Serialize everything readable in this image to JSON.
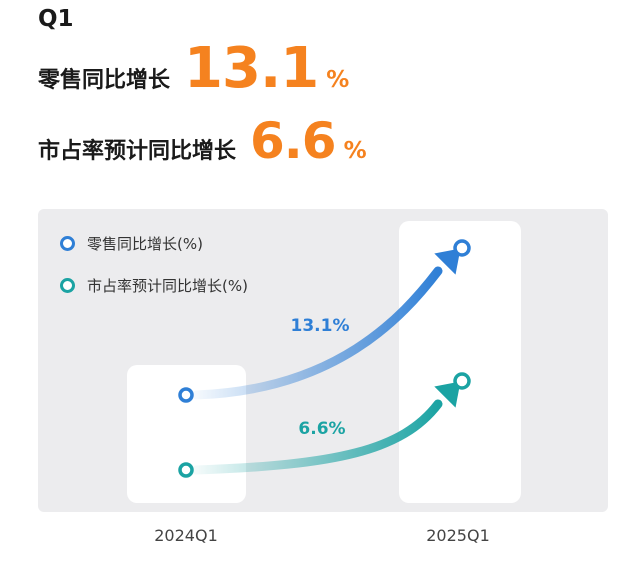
{
  "header": {
    "quarter": "Q1",
    "kpis": [
      {
        "label": "零售同比增长",
        "value": "13.1",
        "unit": "%"
      },
      {
        "label": "市占率预计同比增长",
        "value": "6.6",
        "unit": "%"
      }
    ]
  },
  "colors": {
    "accent_orange": "#f5821f",
    "retail_blue": "#2f7fd6",
    "share_teal": "#1ba3a3"
  },
  "chart_data": {
    "type": "line",
    "categories": [
      "2024Q1",
      "2025Q1"
    ],
    "series": [
      {
        "name": "零售同比增长(%)",
        "change_label": "13.1%",
        "change": 13.1,
        "color": "#2f7fd6"
      },
      {
        "name": "市占率预计同比增长(%)",
        "change_label": "6.6%",
        "change": 6.6,
        "color": "#1ba3a3"
      }
    ],
    "legend_position": "top-left",
    "grid": false
  }
}
